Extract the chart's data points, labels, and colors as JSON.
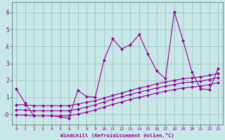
{
  "xlabel": "Windchill (Refroidissement éolien,°C)",
  "bg_color": "#c8e8e8",
  "line_color": "#990099",
  "grid_color": "#99bbbb",
  "xlim": [
    -0.5,
    23.5
  ],
  "ylim": [
    -0.6,
    6.6
  ],
  "xticks": [
    0,
    1,
    2,
    3,
    4,
    5,
    6,
    7,
    8,
    9,
    10,
    11,
    12,
    13,
    14,
    15,
    16,
    17,
    18,
    19,
    20,
    21,
    22,
    23
  ],
  "yticks": [
    0,
    1,
    2,
    3,
    4,
    5,
    6
  ],
  "ytick_labels": [
    "-0",
    "1",
    "2",
    "3",
    "4",
    "5",
    "6"
  ],
  "s1_x": [
    0,
    1,
    2,
    3,
    4,
    5,
    6,
    7,
    8,
    9,
    10,
    11,
    12,
    13,
    14,
    15,
    16,
    17,
    18,
    19,
    20,
    21,
    22,
    23
  ],
  "s1_y": [
    1.5,
    0.65,
    -0.1,
    -0.1,
    -0.1,
    -0.15,
    -0.25,
    1.4,
    1.05,
    1.0,
    3.2,
    4.45,
    3.85,
    4.1,
    4.7,
    3.55,
    2.55,
    2.1,
    6.05,
    4.35,
    2.5,
    1.5,
    1.45,
    2.7
  ],
  "s2_x": [
    0,
    1,
    2,
    3,
    4,
    5,
    6,
    7,
    8,
    9,
    10,
    11,
    12,
    13,
    14,
    15,
    16,
    17,
    18,
    19,
    20,
    21,
    22,
    23
  ],
  "s2_y": [
    0.55,
    0.55,
    0.5,
    0.5,
    0.5,
    0.5,
    0.5,
    0.6,
    0.7,
    0.8,
    0.95,
    1.1,
    1.25,
    1.4,
    1.55,
    1.65,
    1.8,
    1.9,
    2.0,
    2.1,
    2.15,
    2.2,
    2.3,
    2.4
  ],
  "s3_x": [
    0,
    1,
    2,
    3,
    4,
    5,
    6,
    7,
    8,
    9,
    10,
    11,
    12,
    13,
    14,
    15,
    16,
    17,
    18,
    19,
    20,
    21,
    22,
    23
  ],
  "s3_y": [
    0.25,
    0.25,
    0.2,
    0.2,
    0.2,
    0.2,
    0.2,
    0.3,
    0.42,
    0.55,
    0.72,
    0.88,
    1.02,
    1.17,
    1.3,
    1.42,
    1.55,
    1.65,
    1.75,
    1.85,
    1.9,
    1.95,
    2.05,
    2.15
  ],
  "s4_x": [
    0,
    1,
    2,
    3,
    4,
    5,
    6,
    7,
    8,
    9,
    10,
    11,
    12,
    13,
    14,
    15,
    16,
    17,
    18,
    19,
    20,
    21,
    22,
    23
  ],
  "s4_y": [
    -0.05,
    -0.05,
    -0.1,
    -0.1,
    -0.1,
    -0.1,
    -0.1,
    0.0,
    0.12,
    0.25,
    0.42,
    0.58,
    0.72,
    0.87,
    1.0,
    1.12,
    1.25,
    1.35,
    1.45,
    1.55,
    1.6,
    1.65,
    1.75,
    1.85
  ]
}
